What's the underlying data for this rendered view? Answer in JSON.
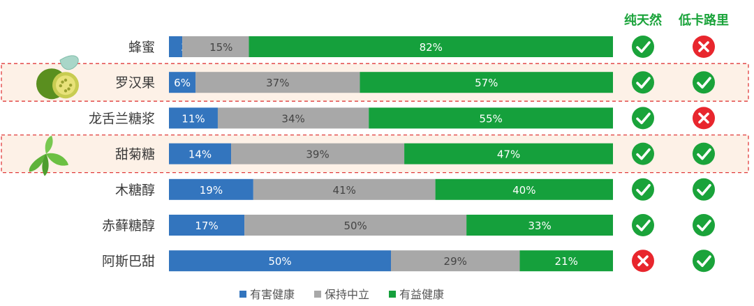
{
  "chart_data": {
    "type": "bar",
    "orientation": "horizontal",
    "stacked": "percent",
    "categories": [
      "蜂蜜",
      "罗汉果",
      "龙舌兰糖浆",
      "甜菊糖",
      "木糖醇",
      "赤藓糖醇",
      "阿斯巴甜"
    ],
    "series": [
      {
        "name": "有害健康",
        "color": "#3375be",
        "values": [
          3,
          6,
          11,
          14,
          19,
          17,
          50
        ]
      },
      {
        "name": "保持中立",
        "color": "#a8a8a8",
        "values": [
          15,
          37,
          34,
          39,
          41,
          50,
          29
        ]
      },
      {
        "name": "有益健康",
        "color": "#15a03c",
        "values": [
          82,
          57,
          55,
          47,
          40,
          33,
          21
        ]
      }
    ],
    "highlighted": [
      "罗汉果",
      "甜菊糖"
    ],
    "title": "",
    "xlabel": "",
    "ylabel": "",
    "xlim": [
      0,
      100
    ],
    "legend_position": "bottom",
    "grid": false
  },
  "attributes": {
    "columns": [
      "纯天然",
      "低卡路里"
    ],
    "check_color": "#1aa33a",
    "cross_color": "#e8262d",
    "values": [
      [
        true,
        false
      ],
      [
        true,
        true
      ],
      [
        true,
        false
      ],
      [
        true,
        true
      ],
      [
        true,
        true
      ],
      [
        true,
        true
      ],
      [
        false,
        true
      ]
    ]
  }
}
